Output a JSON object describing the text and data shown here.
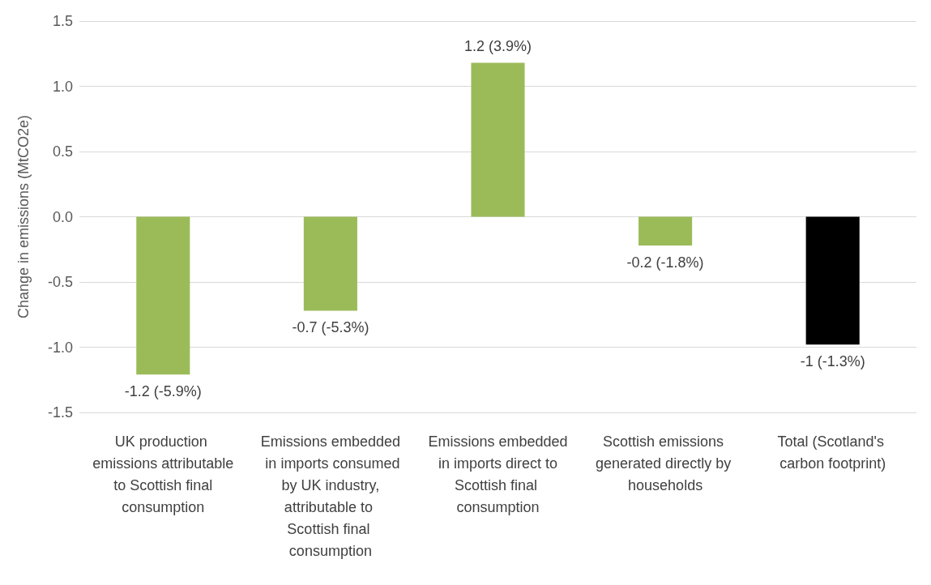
{
  "chart_data": {
    "type": "bar",
    "ylabel": "Change in emissions (MtCO2e)",
    "categories": [
      "UK production emissions attributable to Scottish final consumption",
      "Emissions embedded in imports consumed by UK industry, attributable to Scottish final consumption",
      "Emissions embedded in imports direct to Scottish final consumption",
      "Scottish emissions generated directly by households",
      "Total (Scotland's carbon footprint)"
    ],
    "values": [
      -1.21,
      -0.72,
      1.18,
      -0.22,
      -0.98
    ],
    "colors": [
      "#9bbb59",
      "#9bbb59",
      "#9bbb59",
      "#9bbb59",
      "#000000"
    ],
    "value_labels": [
      "-1.2 (-5.9%)",
      "-0.7 (-5.3%)",
      "1.2 (3.9%)",
      "-0.2 (-1.8%)",
      "-1 (-1.3%)"
    ],
    "ylim": [
      -1.5,
      1.5
    ],
    "yticks": [
      -1.5,
      {
        "value": -1,
        "label": "-1.0"
      },
      -0.5,
      {
        "value": 0,
        "label": "0.0"
      },
      0.5,
      {
        "value": 1,
        "label": "1.0"
      },
      1.5
    ],
    "grid": "y"
  }
}
